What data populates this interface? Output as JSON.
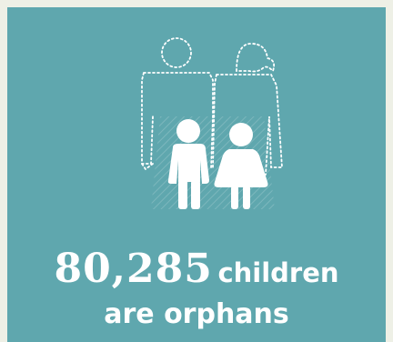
{
  "infographic": {
    "number": "80,285",
    "line1_suffix": "children",
    "line2": "are orphans"
  },
  "colors": {
    "page_background": "#eef0e6",
    "card_background": "#5fa7ae",
    "foreground": "#ffffff"
  },
  "icons": {
    "illustration": "orphan-children-icon"
  }
}
